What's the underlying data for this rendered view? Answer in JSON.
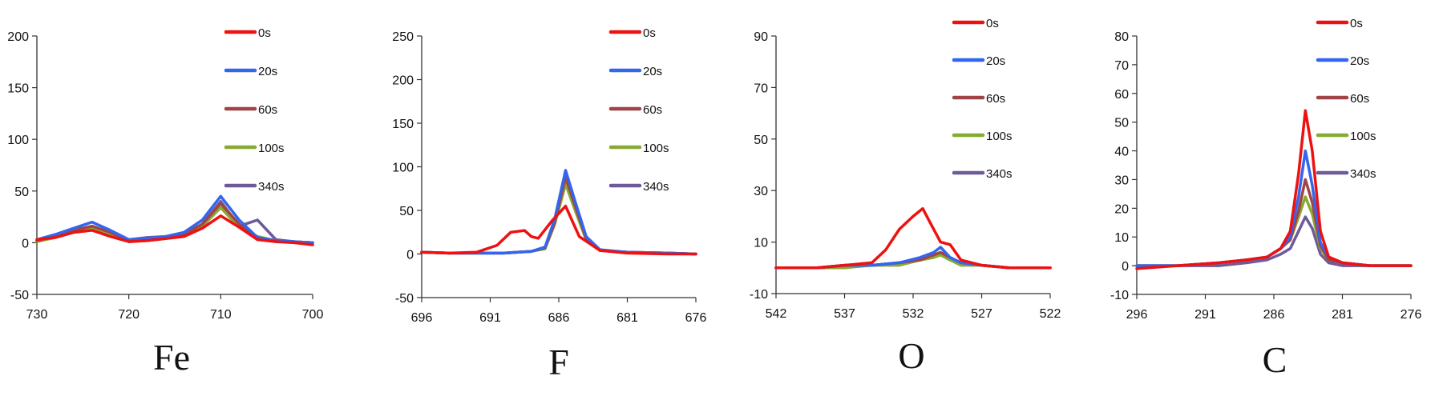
{
  "chart_data": [
    {
      "type": "line",
      "title": "Fe",
      "xlim": [
        730,
        700
      ],
      "ylim": [
        -50,
        200
      ],
      "xticks": [
        730,
        720,
        710,
        700
      ],
      "yticks": [
        -50,
        0,
        50,
        100,
        150,
        200
      ],
      "legend_position": "top-right",
      "series": [
        {
          "name": "0s",
          "color": "#ee1111",
          "x": [
            730,
            728,
            726,
            724,
            722,
            720,
            718,
            716,
            714,
            712,
            710,
            708,
            706,
            704,
            702,
            700
          ],
          "y": [
            3,
            5,
            10,
            12,
            6,
            1,
            2,
            4,
            6,
            14,
            26,
            15,
            3,
            1,
            0,
            -2
          ]
        },
        {
          "name": "20s",
          "color": "#3366ee",
          "x": [
            730,
            728,
            726,
            724,
            722,
            720,
            718,
            716,
            714,
            712,
            710,
            708,
            706,
            704,
            702,
            700
          ],
          "y": [
            3,
            8,
            14,
            20,
            12,
            3,
            4,
            6,
            10,
            22,
            45,
            22,
            5,
            2,
            1,
            0
          ]
        },
        {
          "name": "60s",
          "color": "#a04545",
          "x": [
            730,
            728,
            726,
            724,
            722,
            720,
            718,
            716,
            714,
            712,
            710,
            708,
            706,
            704,
            702,
            700
          ],
          "y": [
            2,
            6,
            12,
            16,
            10,
            2,
            3,
            5,
            8,
            18,
            38,
            18,
            5,
            2,
            1,
            0
          ]
        },
        {
          "name": "100s",
          "color": "#88aa33",
          "x": [
            730,
            728,
            726,
            724,
            722,
            720,
            718,
            716,
            714,
            712,
            710,
            708,
            706,
            704,
            702,
            700
          ],
          "y": [
            1,
            5,
            10,
            14,
            8,
            1,
            2,
            4,
            7,
            16,
            34,
            15,
            6,
            2,
            1,
            0
          ]
        },
        {
          "name": "340s",
          "color": "#6e5a9a",
          "x": [
            730,
            728,
            726,
            724,
            722,
            720,
            718,
            716,
            714,
            712,
            710,
            708,
            706,
            704,
            702,
            700
          ],
          "y": [
            2,
            6,
            12,
            16,
            10,
            3,
            5,
            6,
            8,
            18,
            40,
            16,
            22,
            3,
            1,
            0
          ]
        }
      ]
    },
    {
      "type": "line",
      "title": "F",
      "xlim": [
        696,
        676
      ],
      "ylim": [
        -50,
        250
      ],
      "xticks": [
        696,
        691,
        686,
        681,
        676
      ],
      "yticks": [
        -50,
        0,
        50,
        100,
        150,
        200,
        250
      ],
      "legend_position": "top-right",
      "series": [
        {
          "name": "0s",
          "color": "#ee1111",
          "x": [
            696,
            694,
            692,
            690.5,
            689.5,
            688.5,
            688,
            687.5,
            686.5,
            685.5,
            684.5,
            683,
            681,
            678,
            676
          ],
          "y": [
            2,
            1,
            2,
            10,
            25,
            27,
            20,
            18,
            38,
            55,
            20,
            4,
            1,
            0,
            0
          ]
        },
        {
          "name": "20s",
          "color": "#3366ee",
          "x": [
            696,
            694,
            692,
            690,
            689,
            688,
            687,
            686.3,
            685.5,
            684.8,
            684,
            683,
            681,
            678,
            676
          ],
          "y": [
            2,
            1,
            1,
            1,
            2,
            3,
            8,
            40,
            96,
            60,
            20,
            5,
            2,
            1,
            0
          ]
        },
        {
          "name": "60s",
          "color": "#a04545",
          "x": [
            696,
            694,
            692,
            690,
            689,
            688,
            687,
            686.3,
            685.5,
            684.8,
            684,
            683,
            681,
            678,
            676
          ],
          "y": [
            2,
            1,
            1,
            1,
            2,
            3,
            7,
            36,
            88,
            55,
            18,
            4,
            2,
            1,
            0
          ]
        },
        {
          "name": "100s",
          "color": "#88aa33",
          "x": [
            696,
            694,
            692,
            690,
            689,
            688,
            687,
            686.3,
            685.5,
            684.8,
            684,
            683,
            681,
            678,
            676
          ],
          "y": [
            2,
            1,
            1,
            1,
            2,
            3,
            6,
            34,
            80,
            50,
            16,
            4,
            2,
            1,
            0
          ]
        },
        {
          "name": "340s",
          "color": "#6e5a9a",
          "x": [
            696,
            694,
            692,
            690,
            689,
            688,
            687,
            686.3,
            685.5,
            684.8,
            684,
            683,
            681,
            678,
            676
          ],
          "y": [
            2,
            1,
            1,
            1,
            2,
            3,
            7,
            38,
            86,
            54,
            18,
            4,
            2,
            1,
            0
          ]
        }
      ]
    },
    {
      "type": "line",
      "title": "O",
      "xlim": [
        542,
        522
      ],
      "ylim": [
        -10,
        90
      ],
      "xticks": [
        542,
        537,
        532,
        527,
        522
      ],
      "yticks": [
        -10,
        10,
        30,
        50,
        70,
        90
      ],
      "legend_position": "top-right",
      "series": [
        {
          "name": "0s",
          "color": "#ee1111",
          "x": [
            542,
            539,
            537,
            535,
            534,
            533,
            532,
            531.3,
            530.7,
            530,
            529.3,
            528.5,
            527,
            525,
            522
          ],
          "y": [
            0,
            0,
            1,
            2,
            7,
            15,
            20,
            23,
            17,
            10,
            9,
            3,
            1,
            0,
            0
          ]
        },
        {
          "name": "20s",
          "color": "#3366ee",
          "x": [
            542,
            539,
            537,
            535,
            533,
            531.5,
            530.5,
            530,
            529.3,
            528.5,
            527,
            525,
            522
          ],
          "y": [
            0,
            0,
            1,
            1,
            2,
            4,
            6,
            8,
            4,
            2,
            1,
            0,
            0
          ]
        },
        {
          "name": "60s",
          "color": "#a04545",
          "x": [
            542,
            539,
            537,
            535,
            533,
            531.5,
            530.5,
            530,
            529.3,
            528.5,
            527,
            525,
            522
          ],
          "y": [
            0,
            0,
            1,
            1,
            2,
            3,
            5,
            6,
            4,
            2,
            1,
            0,
            0
          ]
        },
        {
          "name": "100s",
          "color": "#88aa33",
          "x": [
            542,
            539,
            537,
            535,
            533,
            531.5,
            530.5,
            530,
            529.3,
            528.5,
            527,
            525,
            522
          ],
          "y": [
            0,
            0,
            0,
            1,
            1,
            3,
            4,
            5,
            3,
            1,
            1,
            0,
            0
          ]
        },
        {
          "name": "340s",
          "color": "#6e5a9a",
          "x": [
            542,
            539,
            537,
            535,
            533,
            531.5,
            530.5,
            530,
            529.3,
            528.5,
            527,
            525,
            522
          ],
          "y": [
            0,
            0,
            1,
            1,
            2,
            3,
            5,
            6,
            4,
            2,
            1,
            0,
            0
          ]
        }
      ]
    },
    {
      "type": "line",
      "title": "C",
      "xlim": [
        296,
        276
      ],
      "ylim": [
        -10,
        80
      ],
      "xticks": [
        296,
        291,
        286,
        281,
        276
      ],
      "yticks": [
        -10,
        0,
        10,
        20,
        30,
        40,
        50,
        60,
        70,
        80
      ],
      "legend_position": "top-right",
      "series": [
        {
          "name": "0s",
          "color": "#ee1111",
          "x": [
            296,
            293,
            290,
            288,
            286.5,
            285.5,
            284.8,
            284.2,
            283.7,
            283.2,
            282.6,
            282,
            281,
            279,
            276
          ],
          "y": [
            -1,
            0,
            1,
            2,
            3,
            6,
            12,
            32,
            54,
            40,
            12,
            3,
            1,
            0,
            0
          ]
        },
        {
          "name": "20s",
          "color": "#3366ee",
          "x": [
            296,
            293,
            290,
            288,
            286.5,
            285.5,
            284.8,
            284.2,
            283.7,
            283.2,
            282.6,
            282,
            281,
            279,
            276
          ],
          "y": [
            0,
            0,
            1,
            2,
            3,
            6,
            10,
            24,
            40,
            28,
            8,
            3,
            1,
            0,
            0
          ]
        },
        {
          "name": "60s",
          "color": "#a04545",
          "x": [
            296,
            293,
            290,
            288,
            286.5,
            285.5,
            284.8,
            284.2,
            283.7,
            283.2,
            282.6,
            282,
            281,
            279,
            276
          ],
          "y": [
            0,
            0,
            1,
            2,
            3,
            6,
            9,
            19,
            30,
            22,
            7,
            2,
            1,
            0,
            0
          ]
        },
        {
          "name": "100s",
          "color": "#88aa33",
          "x": [
            296,
            293,
            290,
            288,
            286.5,
            285.5,
            284.8,
            284.2,
            283.7,
            283.2,
            282.6,
            282,
            281,
            279,
            276
          ],
          "y": [
            0,
            0,
            1,
            2,
            3,
            6,
            9,
            17,
            24,
            18,
            6,
            2,
            1,
            0,
            0
          ]
        },
        {
          "name": "340s",
          "color": "#6e5a9a",
          "x": [
            296,
            293,
            290,
            288,
            286.5,
            285.5,
            284.8,
            284.2,
            283.7,
            283.2,
            282.6,
            282,
            281,
            279,
            276
          ],
          "y": [
            0,
            0,
            0,
            1,
            2,
            4,
            6,
            12,
            17,
            13,
            4,
            1,
            0,
            0,
            0
          ]
        }
      ]
    }
  ]
}
